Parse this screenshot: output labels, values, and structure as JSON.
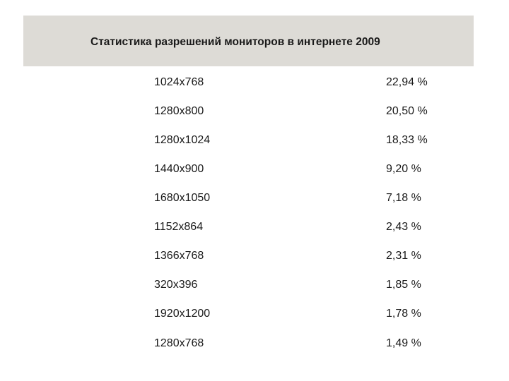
{
  "header": {
    "title": "Статистика разрешений мониторов в интернете 2009"
  },
  "rows": [
    {
      "resolution": "1024x768",
      "share": "22,94 %"
    },
    {
      "resolution": "1280x800",
      "share": "20,50 %"
    },
    {
      "resolution": "1280x1024",
      "share": "18,33 %"
    },
    {
      "resolution": "1440x900",
      "share": "9,20 %"
    },
    {
      "resolution": "1680x1050",
      "share": "7,18 %"
    },
    {
      "resolution": "1152x864",
      "share": "2,43 %"
    },
    {
      "resolution": "1366x768",
      "share": "2,31 %"
    },
    {
      "resolution": "320x396",
      "share": "1,85 %"
    },
    {
      "resolution": "1920x1200",
      "share": "1,78 %"
    },
    {
      "resolution": "1280x768",
      "share": "1,49 %"
    }
  ],
  "colors": {
    "header_band": "#dddbd6",
    "text": "#1a1a1a",
    "background": "#ffffff"
  }
}
